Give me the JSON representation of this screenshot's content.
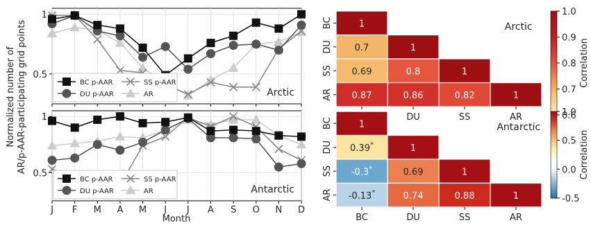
{
  "chart_data": [
    {
      "type": "line",
      "panel": "top-left",
      "annotation": "Arctic",
      "x": [
        "J",
        "F",
        "M",
        "A",
        "M",
        "J",
        "J",
        "A",
        "S",
        "O",
        "N",
        "D"
      ],
      "ylim": [
        0.25,
        1.05
      ],
      "yticks": [
        0.5,
        1
      ],
      "series": [
        {
          "name": "BC p-AAR",
          "marker": "square",
          "color": "#111111",
          "values": [
            0.96,
            0.99,
            0.91,
            0.88,
            0.72,
            0.49,
            0.63,
            0.76,
            0.82,
            0.93,
            0.88,
            1.0
          ]
        },
        {
          "name": "DU p-AAR",
          "marker": "circle",
          "color": "#555555",
          "values": [
            0.92,
            0.99,
            0.86,
            0.82,
            0.64,
            0.73,
            0.54,
            0.67,
            0.74,
            0.75,
            0.7,
            0.91
          ]
        },
        {
          "name": "SS p-AAR",
          "marker": "x",
          "color": "#888888",
          "values": [
            0.99,
            0.99,
            0.79,
            0.53,
            0.51,
            0.41,
            0.33,
            0.43,
            0.39,
            0.39,
            0.71,
            0.86
          ]
        },
        {
          "name": "AR",
          "marker": "triangle",
          "color": "#cccccc",
          "values": [
            0.84,
            0.89,
            0.87,
            0.76,
            0.55,
            0.43,
            0.32,
            0.45,
            0.55,
            0.75,
            0.77,
            0.85
          ]
        }
      ]
    },
    {
      "type": "line",
      "panel": "bottom-left",
      "annotation": "Antarctic",
      "x": [
        "J",
        "F",
        "M",
        "A",
        "M",
        "J",
        "J",
        "A",
        "S",
        "O",
        "N",
        "D"
      ],
      "ylim": [
        0.25,
        1.05
      ],
      "yticks": [
        0.5,
        1
      ],
      "series": [
        {
          "name": "BC p-AAR",
          "marker": "square",
          "color": "#111111",
          "values": [
            0.96,
            0.9,
            0.97,
            1.0,
            0.94,
            0.95,
            0.99,
            0.87,
            0.88,
            0.87,
            0.83,
            0.82
          ]
        },
        {
          "name": "DU p-AAR",
          "marker": "circle",
          "color": "#555555",
          "values": [
            0.61,
            0.63,
            0.75,
            0.7,
            0.77,
            0.88,
            0.98,
            0.81,
            0.81,
            0.8,
            0.55,
            0.58
          ]
        },
        {
          "name": "SS p-AAR",
          "marker": "x",
          "color": "#888888",
          "values": [
            0.53,
            0.47,
            0.48,
            0.39,
            0.74,
            0.82,
            0.99,
            0.91,
            1.0,
            0.91,
            0.71,
            0.61
          ]
        },
        {
          "name": "AR",
          "marker": "triangle",
          "color": "#cccccc",
          "values": [
            0.74,
            0.76,
            0.78,
            0.82,
            0.81,
            0.88,
            0.97,
            0.93,
            0.97,
            0.97,
            0.83,
            0.75
          ]
        }
      ]
    },
    {
      "type": "heatmap",
      "panel": "top-right",
      "annotation": "Arctic",
      "labels": [
        "BC",
        "DU",
        "SS",
        "AR"
      ],
      "matrix": [
        [
          1,
          null,
          null,
          null
        ],
        [
          0.7,
          1,
          null,
          null
        ],
        [
          0.69,
          0.8,
          1,
          null
        ],
        [
          0.87,
          0.86,
          0.82,
          1
        ]
      ],
      "cell_text": [
        [
          "1",
          "",
          "",
          ""
        ],
        [
          "0.7",
          "1",
          "",
          ""
        ],
        [
          "0.69",
          "0.8",
          "1",
          ""
        ],
        [
          "0.87",
          "0.86",
          "0.82",
          "1"
        ]
      ],
      "starred": [],
      "colorbar": {
        "label": "Correlation",
        "range": [
          0.6,
          1.0
        ],
        "ticks": [
          "1.0",
          "0.9",
          "0.8",
          "0.7",
          "0.6"
        ],
        "tick_values": [
          1.0,
          0.9,
          0.8,
          0.7,
          0.6
        ]
      }
    },
    {
      "type": "heatmap",
      "panel": "bottom-right",
      "annotation": "Antarctic",
      "labels": [
        "BC",
        "DU",
        "SS",
        "AR"
      ],
      "matrix": [
        [
          1,
          null,
          null,
          null
        ],
        [
          0.39,
          1,
          null,
          null
        ],
        [
          -0.3,
          0.69,
          1,
          null
        ],
        [
          -0.13,
          0.74,
          0.88,
          1
        ]
      ],
      "cell_text": [
        [
          "1",
          "",
          "",
          ""
        ],
        [
          "0.39",
          "1",
          "",
          ""
        ],
        [
          "-0.3",
          "0.69",
          "1",
          ""
        ],
        [
          "-0.13",
          "0.74",
          "0.88",
          "1"
        ]
      ],
      "starred": [
        [
          1,
          0
        ],
        [
          2,
          0
        ],
        [
          3,
          0
        ]
      ],
      "star": "*",
      "colorbar": {
        "label": "Correlation",
        "range": [
          -0.5,
          1.0
        ],
        "ticks": [
          "1.0",
          "0.5",
          "0.0",
          "-0.5"
        ],
        "tick_values": [
          1.0,
          0.5,
          0.0,
          -0.5
        ]
      }
    }
  ],
  "shared": {
    "ylabel_line1": "Normalized number of",
    "ylabel_line2": "AR/p-AAR-participating grid points",
    "xlabel": "Month"
  }
}
